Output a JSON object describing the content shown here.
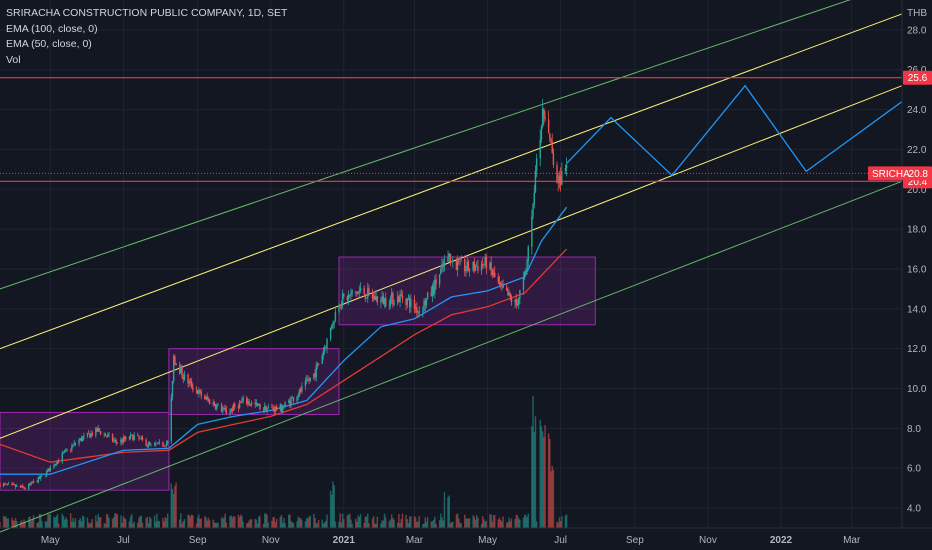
{
  "legend": {
    "title": "SRIRACHA CONSTRUCTION PUBLIC COMPANY, 1D, SET",
    "ema100": "EMA (100, close, 0)",
    "ema50": "EMA (50, close, 0)",
    "vol": "Vol"
  },
  "colors": {
    "background": "#131722",
    "grid": "#1f2433",
    "up": "#26a69a",
    "down": "#ef5350",
    "ema100": "#e53935",
    "ema50": "#2196f3",
    "channel_outer": "#66bb6a",
    "channel_inner": "#fff176",
    "projection": "#2196f3",
    "range_box": "#9c27b0",
    "resistance": "#f23645"
  },
  "chart_data": {
    "type": "candlestick",
    "currency": "THB",
    "ylim": [
      3.0,
      29.5
    ],
    "y_ticks": [
      "4.0",
      "6.0",
      "8.0",
      "10.0",
      "12.0",
      "14.0",
      "16.0",
      "18.0",
      "20.0",
      "22.0",
      "24.0",
      "26.0",
      "28.0"
    ],
    "x_ticks": [
      {
        "label": "May",
        "date": "2020-05-01"
      },
      {
        "label": "Jul",
        "date": "2020-07-01"
      },
      {
        "label": "Sep",
        "date": "2020-09-01"
      },
      {
        "label": "Nov",
        "date": "2020-11-01"
      },
      {
        "label": "2021",
        "date": "2021-01-01",
        "bold": true
      },
      {
        "label": "Mar",
        "date": "2021-03-01"
      },
      {
        "label": "May",
        "date": "2021-05-01"
      },
      {
        "label": "Jul",
        "date": "2021-07-01"
      },
      {
        "label": "Sep",
        "date": "2021-09-01"
      },
      {
        "label": "Nov",
        "date": "2021-11-01"
      },
      {
        "label": "2022",
        "date": "2022-01-01",
        "bold": true
      },
      {
        "label": "Mar",
        "date": "2022-03-01"
      }
    ],
    "x_range": [
      "2020-03-20",
      "2022-04-12"
    ],
    "price_series_path": [
      [
        "2020-03-20",
        5.2
      ],
      [
        "2020-04-10",
        5.0
      ],
      [
        "2020-04-25",
        5.6
      ],
      [
        "2020-05-10",
        6.6
      ],
      [
        "2020-05-25",
        7.4
      ],
      [
        "2020-06-10",
        7.9
      ],
      [
        "2020-06-25",
        7.3
      ],
      [
        "2020-07-10",
        7.6
      ],
      [
        "2020-07-25",
        7.1
      ],
      [
        "2020-08-08",
        7.3
      ],
      [
        "2020-08-12",
        11.6
      ],
      [
        "2020-08-20",
        10.6
      ],
      [
        "2020-09-05",
        9.6
      ],
      [
        "2020-09-25",
        8.8
      ],
      [
        "2020-10-10",
        9.4
      ],
      [
        "2020-10-25",
        9.0
      ],
      [
        "2020-11-10",
        9.0
      ],
      [
        "2020-11-25",
        9.8
      ],
      [
        "2020-12-08",
        10.8
      ],
      [
        "2020-12-18",
        12.4
      ],
      [
        "2020-12-28",
        14.4
      ],
      [
        "2021-01-15",
        14.9
      ],
      [
        "2021-02-01",
        14.4
      ],
      [
        "2021-02-20",
        14.6
      ],
      [
        "2021-03-05",
        13.9
      ],
      [
        "2021-03-15",
        14.8
      ],
      [
        "2021-03-28",
        16.5
      ],
      [
        "2021-04-15",
        16.0
      ],
      [
        "2021-04-30",
        16.3
      ],
      [
        "2021-05-12",
        15.0
      ],
      [
        "2021-05-25",
        14.2
      ],
      [
        "2021-06-02",
        15.8
      ],
      [
        "2021-06-08",
        19.5
      ],
      [
        "2021-06-12",
        22.5
      ],
      [
        "2021-06-18",
        24.0
      ],
      [
        "2021-06-22",
        22.3
      ],
      [
        "2021-06-28",
        20.5
      ],
      [
        "2021-07-06",
        20.8
      ]
    ],
    "ema50": [
      [
        "2020-03-20",
        5.7
      ],
      [
        "2020-05-01",
        5.7
      ],
      [
        "2020-07-01",
        6.9
      ],
      [
        "2020-08-08",
        7.0
      ],
      [
        "2020-09-01",
        8.2
      ],
      [
        "2020-10-01",
        8.6
      ],
      [
        "2020-11-01",
        8.9
      ],
      [
        "2020-12-01",
        9.4
      ],
      [
        "2021-01-01",
        11.4
      ],
      [
        "2021-02-01",
        13.1
      ],
      [
        "2021-03-01",
        13.5
      ],
      [
        "2021-04-01",
        14.6
      ],
      [
        "2021-05-01",
        14.9
      ],
      [
        "2021-06-01",
        15.6
      ],
      [
        "2021-06-15",
        17.4
      ],
      [
        "2021-07-06",
        19.1
      ]
    ],
    "ema100": [
      [
        "2020-03-20",
        7.2
      ],
      [
        "2020-05-01",
        6.3
      ],
      [
        "2020-07-01",
        6.8
      ],
      [
        "2020-08-08",
        6.9
      ],
      [
        "2020-09-01",
        7.8
      ],
      [
        "2020-10-01",
        8.2
      ],
      [
        "2020-11-01",
        8.6
      ],
      [
        "2020-12-01",
        9.2
      ],
      [
        "2021-01-01",
        10.4
      ],
      [
        "2021-02-01",
        11.6
      ],
      [
        "2021-03-01",
        12.7
      ],
      [
        "2021-04-01",
        13.7
      ],
      [
        "2021-05-01",
        14.1
      ],
      [
        "2021-06-01",
        14.8
      ],
      [
        "2021-07-06",
        17.0
      ]
    ],
    "projection_path": [
      [
        "2021-07-06",
        21.3
      ],
      [
        "2021-08-12",
        23.6
      ],
      [
        "2021-10-02",
        20.7
      ],
      [
        "2021-12-02",
        25.2
      ],
      [
        "2022-01-22",
        20.9
      ],
      [
        "2022-04-12",
        24.4
      ]
    ],
    "channel_lines": [
      {
        "kind": "outer",
        "from": [
          "2020-03-20",
          15.0
        ],
        "to": [
          "2022-04-12",
          30.4
        ]
      },
      {
        "kind": "inner",
        "from": [
          "2020-03-20",
          12.0
        ],
        "to": [
          "2022-04-12",
          28.8
        ]
      },
      {
        "kind": "inner",
        "from": [
          "2020-03-20",
          7.5
        ],
        "to": [
          "2022-04-12",
          25.2
        ]
      },
      {
        "kind": "outer",
        "from": [
          "2020-03-20",
          2.8
        ],
        "to": [
          "2022-04-12",
          20.4
        ]
      }
    ],
    "range_boxes": [
      {
        "from": "2020-03-20",
        "to": "2020-08-08",
        "low": 4.9,
        "high": 8.8
      },
      {
        "from": "2020-08-08",
        "to": "2020-12-28",
        "low": 8.7,
        "high": 12.0
      },
      {
        "from": "2020-12-28",
        "to": "2021-07-30",
        "low": 13.2,
        "high": 16.6
      }
    ],
    "horizontal_levels": [
      {
        "label": "25.6",
        "value": 25.6
      },
      {
        "label": "20.4",
        "value": 20.4
      }
    ],
    "current_price": {
      "symbol": "SRICHA",
      "value": "20.8",
      "price": 20.8
    },
    "volume_spikes": [
      [
        "2020-08-12",
        0.35
      ],
      [
        "2020-12-22",
        0.35
      ],
      [
        "2021-03-28",
        0.28
      ],
      [
        "2021-06-08",
        1.0
      ],
      [
        "2021-06-15",
        0.82
      ],
      [
        "2021-06-20",
        0.78
      ],
      [
        "2021-06-25",
        0.55
      ]
    ]
  }
}
